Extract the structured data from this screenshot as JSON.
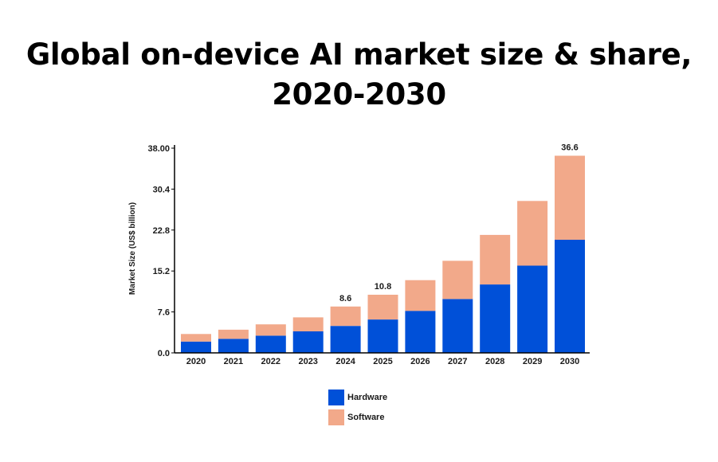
{
  "title_lines": [
    "Global on-device AI market size & share,",
    "2020-2030"
  ],
  "colors": {
    "hardware": "#0050d8",
    "software": "#f2a98a",
    "axis": "#000000"
  },
  "chart_data": {
    "type": "bar",
    "stacked": true,
    "title": "Global on-device AI market size & share, 2020-2030",
    "xlabel": "",
    "ylabel": "Market Size (US$ billion)",
    "ylim": [
      0,
      38.0
    ],
    "yticks": [
      "0.0",
      "7.6",
      "15.2",
      "22.8",
      "30.4",
      "38.00"
    ],
    "categories": [
      "2020",
      "2021",
      "2022",
      "2023",
      "2024",
      "2025",
      "2026",
      "2027",
      "2028",
      "2029",
      "2030"
    ],
    "series": [
      {
        "name": "Hardware",
        "values": [
          2.1,
          2.6,
          3.2,
          4.0,
          5.0,
          6.2,
          7.8,
          10.0,
          12.7,
          16.2,
          21.0
        ]
      },
      {
        "name": "Software",
        "values": [
          1.4,
          1.7,
          2.1,
          2.6,
          3.6,
          4.6,
          5.7,
          7.1,
          9.2,
          12.0,
          15.6
        ]
      }
    ],
    "annotations": [
      {
        "category": "2024",
        "label": "8.6"
      },
      {
        "category": "2025",
        "label": "10.8"
      },
      {
        "category": "2030",
        "label": "36.6"
      }
    ],
    "legend_position": "bottom-center",
    "grid": false
  }
}
